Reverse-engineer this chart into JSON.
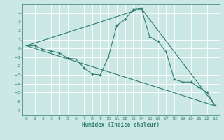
{
  "xlabel": "Humidex (Indice chaleur)",
  "background_color": "#cce8e4",
  "grid_color": "#ffffff",
  "line_color": "#2e7d6e",
  "xlim": [
    -0.5,
    23.5
  ],
  "ylim": [
    -7.5,
    5.0
  ],
  "xticks": [
    0,
    1,
    2,
    3,
    4,
    5,
    6,
    7,
    8,
    9,
    10,
    11,
    12,
    13,
    14,
    15,
    16,
    17,
    18,
    19,
    20,
    21,
    22,
    23
  ],
  "yticks": [
    -7,
    -6,
    -5,
    -4,
    -3,
    -2,
    -1,
    0,
    1,
    2,
    3,
    4
  ],
  "series1_x": [
    0,
    1,
    2,
    3,
    4,
    5,
    6,
    7,
    8,
    9,
    10,
    11,
    12,
    13,
    14,
    15,
    16,
    17,
    18,
    19,
    20,
    21,
    22,
    23
  ],
  "series1_y": [
    0.3,
    0.3,
    -0.1,
    -0.3,
    -0.5,
    -1.1,
    -1.2,
    -2.2,
    -2.9,
    -3.0,
    -0.9,
    2.6,
    3.3,
    4.4,
    4.5,
    1.3,
    0.8,
    -0.4,
    -3.5,
    -3.8,
    -3.8,
    -4.4,
    -5.0,
    -6.5
  ],
  "series2_x": [
    0,
    23
  ],
  "series2_y": [
    0.3,
    -6.5
  ],
  "series3_x": [
    0,
    14,
    23
  ],
  "series3_y": [
    0.3,
    4.5,
    -6.5
  ]
}
